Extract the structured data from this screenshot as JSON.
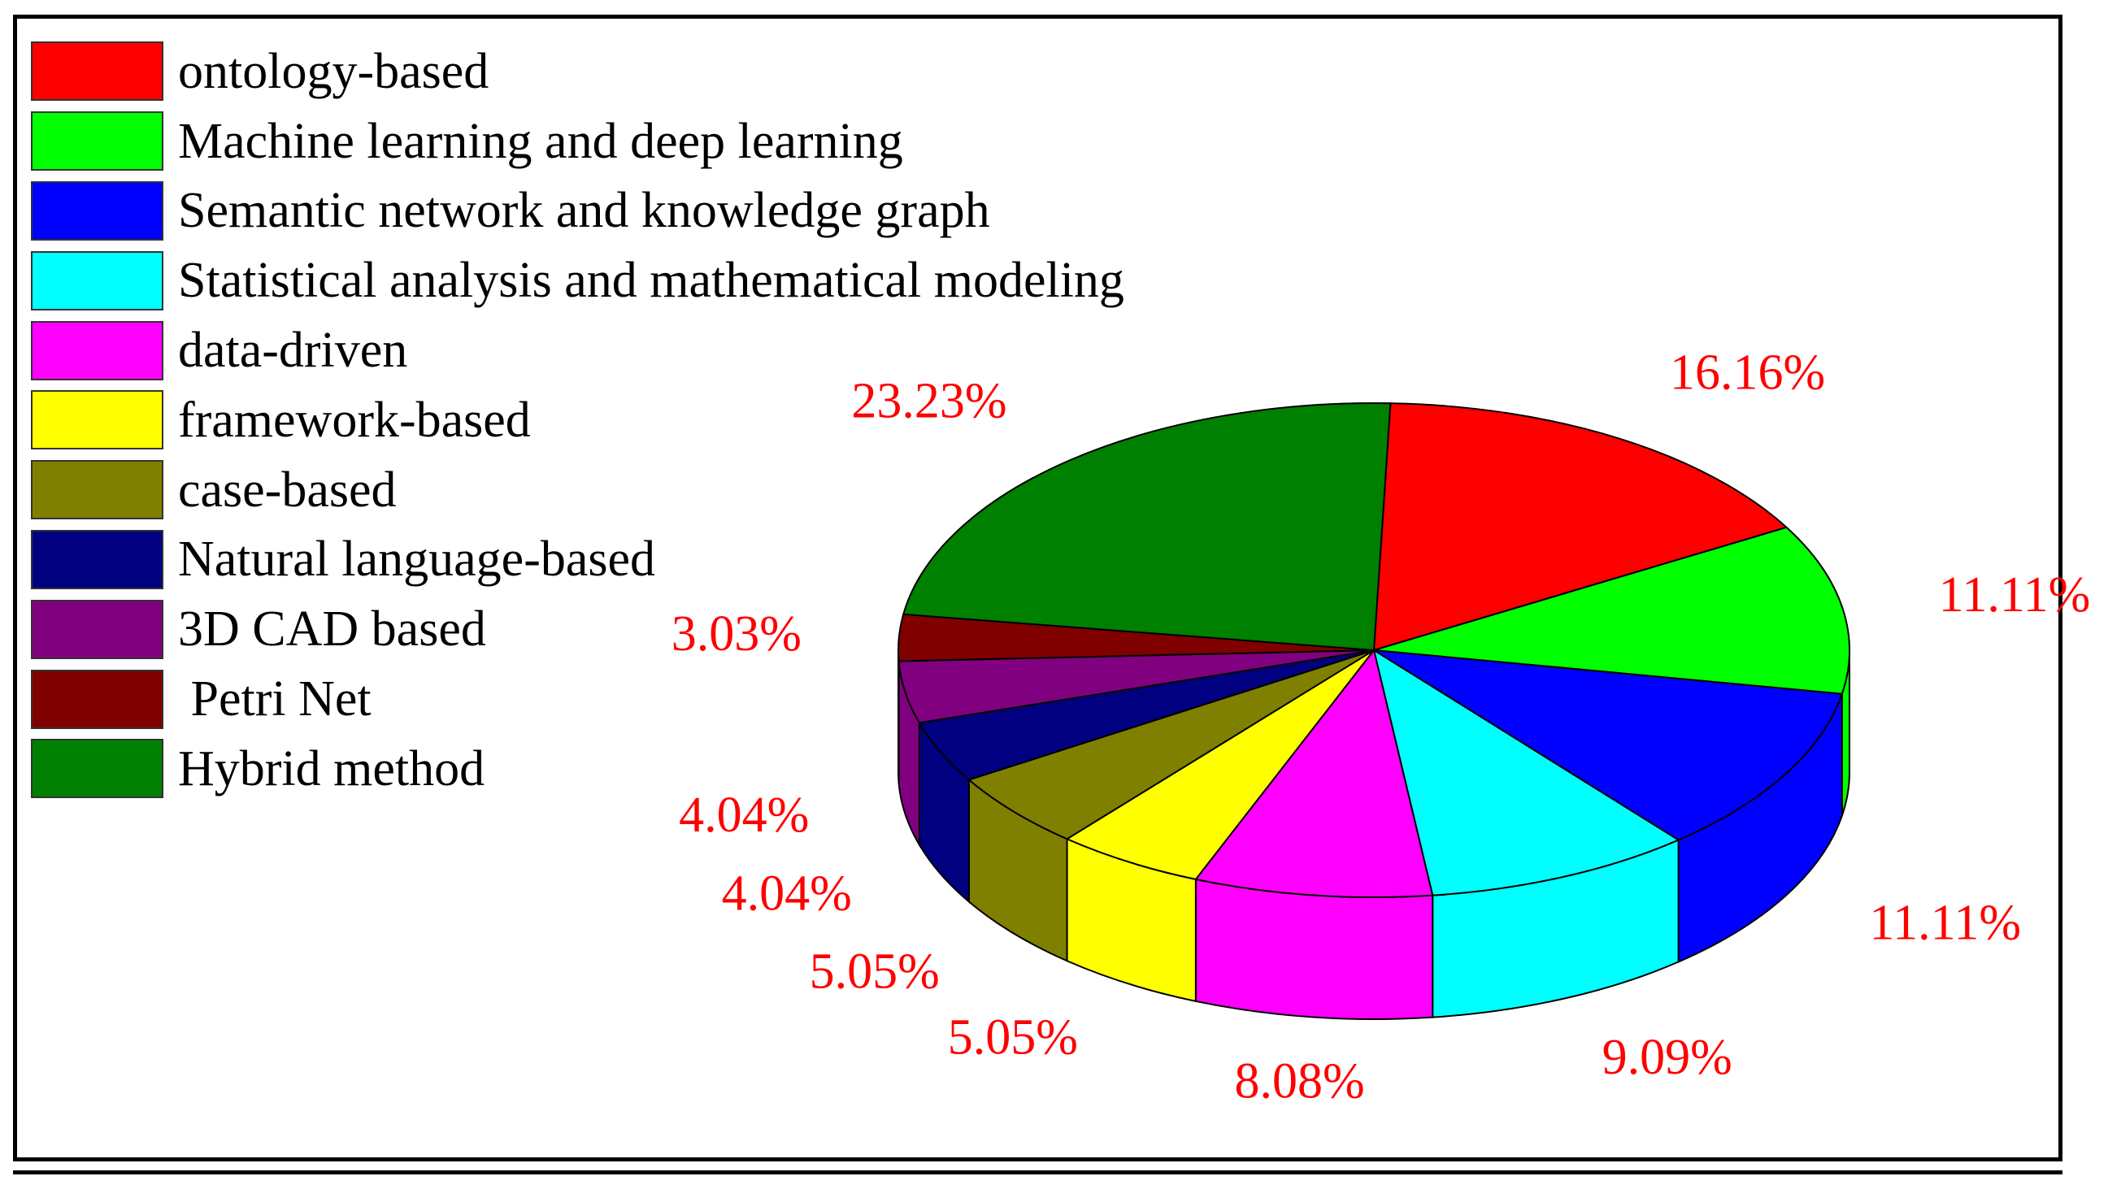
{
  "chart_data": {
    "type": "pie",
    "style": "3d-exploded-none",
    "title": "",
    "legend_position": "top-left",
    "label_color": "#ff0000",
    "categories": [
      "ontology-based",
      "Machine learning and deep learning",
      "Semantic network and knowledge graph",
      "Statistical analysis and mathematical modeling",
      "data-driven",
      "framework-based",
      "case-based",
      "Natural language-based",
      "3D CAD based",
      " Petri Net",
      "Hybrid method"
    ],
    "values": [
      16.16,
      11.11,
      11.11,
      9.09,
      8.08,
      5.05,
      5.05,
      4.04,
      4.04,
      3.03,
      23.23
    ],
    "value_labels": [
      "16.16%",
      "11.11%",
      "11.11%",
      "9.09%",
      "8.08%",
      "5.05%",
      "5.05%",
      "4.04%",
      "4.04%",
      "3.03%",
      "23.23%"
    ],
    "colors": [
      "#ff0000",
      "#00ff00",
      "#0000ff",
      "#00ffff",
      "#ff00ff",
      "#ffff00",
      "#808000",
      "#000080",
      "#800080",
      "#800000",
      "#008000"
    ]
  }
}
